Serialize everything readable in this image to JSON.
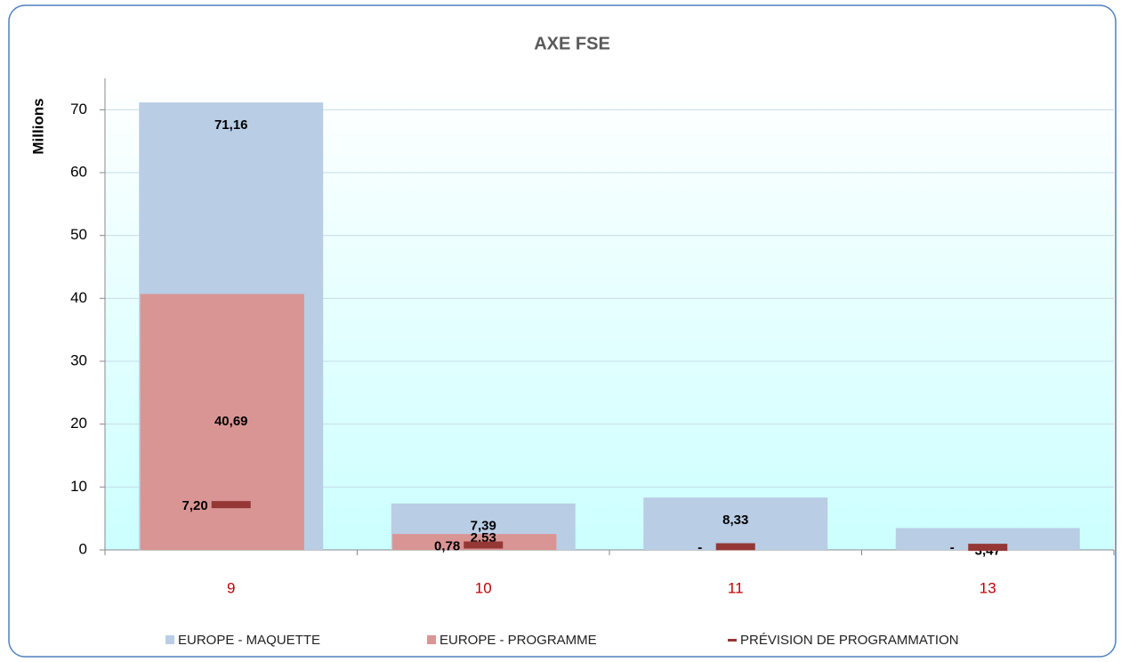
{
  "chart_data": {
    "type": "bar",
    "title": "AXE FSE",
    "y_label": "Millions",
    "categories": [
      "9",
      "10",
      "11",
      "13"
    ],
    "series": [
      {
        "name": "EUROPE - MAQUETTE",
        "color": "#b9cde5",
        "label_color": "#1f3864",
        "values": [
          71.16,
          7.39,
          8.33,
          3.47
        ],
        "value_labels": [
          "71,16",
          "7,39",
          "8,33",
          "3,47"
        ]
      },
      {
        "name": "EUROPE - PROGRAMME",
        "color": "#d99594",
        "label_color": "#ffffff",
        "values": [
          40.69,
          2.53,
          0,
          0
        ],
        "value_labels": [
          "40,69",
          "2,53",
          "-",
          "-"
        ]
      },
      {
        "name": "PRÉVISION DE PROGRAMMATION",
        "type": "marker",
        "color": "#953735",
        "label_color": "#953735",
        "values": [
          7.2,
          0.78,
          0.5,
          0.4
        ],
        "value_labels": [
          "7,20",
          "0,78",
          null,
          null
        ]
      }
    ],
    "ylim": [
      0,
      75
    ],
    "yticks": [
      0,
      10,
      20,
      30,
      40,
      50,
      60,
      70
    ],
    "grid": true
  }
}
